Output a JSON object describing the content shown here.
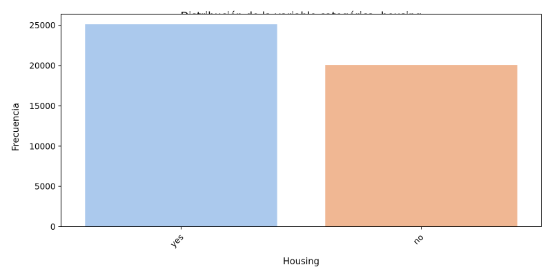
{
  "chart_data": {
    "type": "bar",
    "title": "Distribución de la variable categórica: housing",
    "xlabel": "Housing",
    "ylabel": "Frecuencia",
    "categories": [
      "yes",
      "no"
    ],
    "values": [
      25130,
      20081
    ],
    "colors": [
      "#abc9ed",
      "#f0b793"
    ],
    "ylim": [
      0,
      26387
    ],
    "yticks": [
      0,
      5000,
      10000,
      15000,
      20000,
      25000
    ],
    "ytick_labels": [
      "0",
      "5000",
      "10000",
      "15000",
      "20000",
      "25000"
    ],
    "xtick_rotation": 45,
    "grid": false,
    "legend": "none"
  }
}
